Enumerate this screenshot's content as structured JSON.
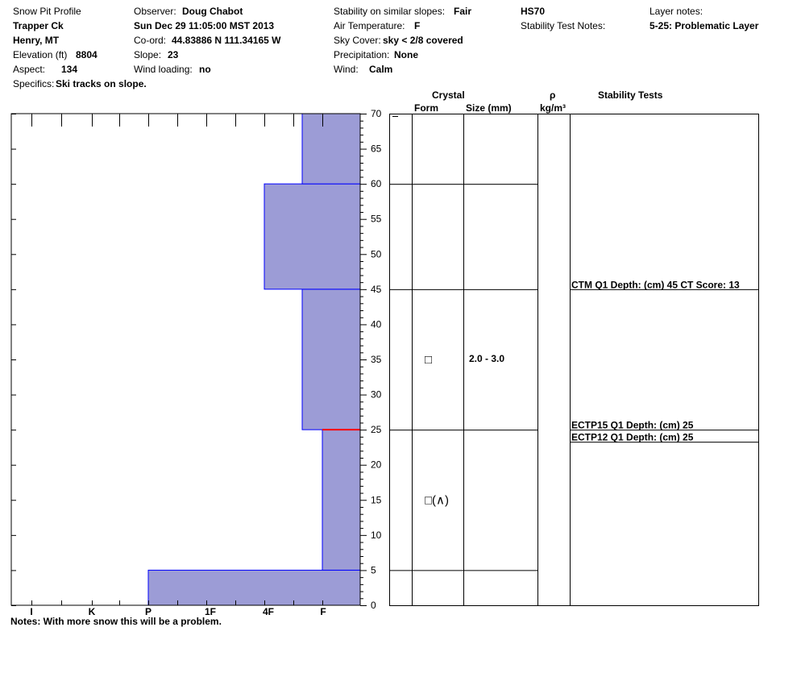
{
  "header": {
    "profile_title": "Snow Pit Profile",
    "location": "Trapper Ck",
    "region": "Henry, MT",
    "elevation_label": "Elevation (ft)",
    "elevation": "8804",
    "aspect_label": "Aspect:",
    "aspect": "134",
    "specifics_label": "Specifics:",
    "specifics": "Ski tracks on slope.",
    "observer_label": "Observer:",
    "observer": "Doug Chabot",
    "datetime": "Sun Dec 29 11:05:00 MST 2013",
    "coord_label": "Co-ord:",
    "coord": "44.83886 N 111.34165 W",
    "slope_label": "Slope:",
    "slope": "23",
    "wind_loading_label": "Wind loading:",
    "wind_loading": "no",
    "stability_label": "Stability on similar slopes:",
    "stability": "Fair",
    "air_temp_label": "Air Temperature:",
    "air_temp": "F",
    "sky_label": "Sky Cover:",
    "sky": "sky < 2/8 covered",
    "precip_label": "Precipitation:",
    "precip": "None",
    "wind_label": "Wind:",
    "wind": "Calm",
    "hs": "HS70",
    "stability_notes_label": "Stability Test Notes:",
    "layer_notes_label": "Layer notes:",
    "layer_note": "5-25: Problematic Layer"
  },
  "columns": {
    "crystal": "Crystal",
    "form": "Form",
    "size": "Size (mm)",
    "rho": "ρ",
    "density_unit": "kg/m³",
    "stability_tests": "Stability Tests"
  },
  "footer": {
    "notes": "Notes:  With more snow this will be a problem."
  },
  "chart_data": {
    "type": "bar",
    "orientation": "horizontal-step",
    "y_axis": {
      "min": 0,
      "max": 70,
      "ticks": [
        0,
        5,
        10,
        15,
        20,
        25,
        30,
        35,
        40,
        45,
        50,
        55,
        60,
        65,
        70
      ],
      "unit": "cm"
    },
    "x_axis": {
      "categories": [
        "I",
        "K",
        "P",
        "1F",
        "4F",
        "F"
      ],
      "reversed": true
    },
    "hardness_layers": [
      {
        "bottom": 0,
        "top": 5,
        "hardness": "P"
      },
      {
        "bottom": 5,
        "top": 25,
        "hardness": "F"
      },
      {
        "bottom": 25,
        "top": 45,
        "hardness": "F+"
      },
      {
        "bottom": 45,
        "top": 60,
        "hardness": "4F"
      },
      {
        "bottom": 60,
        "top": 70,
        "hardness": "F+"
      }
    ],
    "layer_boundaries": [
      5,
      25,
      45,
      60
    ],
    "flagged_interface": 25,
    "crystals": [
      {
        "depth": 35,
        "form": "□",
        "size": "2.0 - 3.0"
      },
      {
        "depth": 15,
        "form": "□(∧)",
        "size": ""
      }
    ],
    "stability_tests": [
      {
        "depth": 45,
        "text": "CTM Q1 Depth: (cm) 45 CT Score: 13"
      },
      {
        "depth": 25,
        "text": "ECTP15 Q1 Depth: (cm) 25"
      },
      {
        "depth": 25,
        "text": "ECTP12 Q1 Depth: (cm) 25"
      }
    ],
    "colors": {
      "fill": "#9c9cd6",
      "outline": "#0000ff",
      "flag": "#ff0000"
    }
  }
}
